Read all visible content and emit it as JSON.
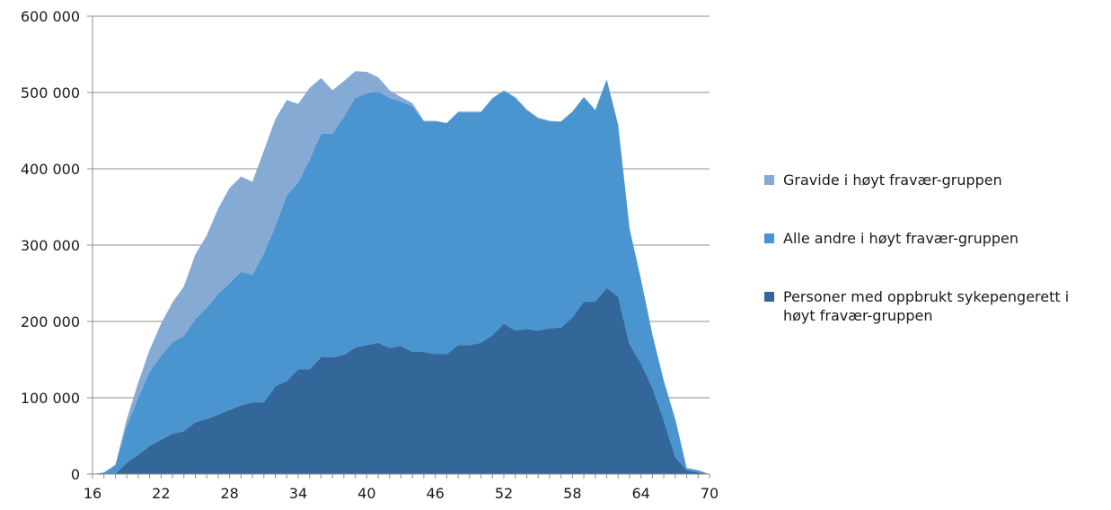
{
  "chart_data": {
    "type": "area",
    "stacked": true,
    "x": [
      16,
      17,
      18,
      19,
      20,
      21,
      22,
      23,
      24,
      25,
      26,
      27,
      28,
      29,
      30,
      31,
      32,
      33,
      34,
      35,
      36,
      37,
      38,
      39,
      40,
      41,
      42,
      43,
      44,
      45,
      46,
      47,
      48,
      49,
      50,
      51,
      52,
      53,
      54,
      55,
      56,
      57,
      58,
      59,
      60,
      61,
      62,
      63,
      64,
      65,
      66,
      67,
      68,
      69,
      70
    ],
    "x_ticks": [
      "16",
      "22",
      "28",
      "34",
      "40",
      "46",
      "52",
      "58",
      "64",
      "70"
    ],
    "y_ticks": [
      "0",
      "100 000",
      "200 000",
      "300 000",
      "400 000",
      "500 000",
      "600 000"
    ],
    "ylim": [
      0,
      600000
    ],
    "xlim": [
      16,
      70
    ],
    "grid": "horizontal",
    "legend_position": "right",
    "series": [
      {
        "name": "Personer med oppbrukt sykepengerett i høyt fravær-gruppen",
        "color": "#336699",
        "values": [
          0,
          0,
          0,
          15000,
          25000,
          37000,
          45000,
          53000,
          56000,
          68000,
          72000,
          78000,
          84000,
          90000,
          94000,
          94000,
          115000,
          122000,
          137000,
          137000,
          153000,
          153000,
          156000,
          166000,
          169000,
          172000,
          165000,
          168000,
          160000,
          160000,
          157000,
          157000,
          169000,
          169000,
          172000,
          182000,
          197000,
          188000,
          190000,
          188000,
          191000,
          192000,
          205000,
          226000,
          226000,
          244000,
          232000,
          170000,
          145000,
          113000,
          70000,
          22000,
          5000,
          2000,
          0
        ]
      },
      {
        "name": "Alle andre i høyt fravær-gruppen",
        "color": "#4a94d0",
        "values": [
          0,
          2000,
          12000,
          48000,
          75000,
          97000,
          110000,
          120000,
          125000,
          135000,
          146000,
          158000,
          166000,
          175000,
          167000,
          195000,
          210000,
          243000,
          245000,
          275000,
          293000,
          293000,
          312000,
          327000,
          330000,
          329000,
          328000,
          320000,
          322000,
          302000,
          305000,
          303000,
          305000,
          305000,
          302000,
          310000,
          305000,
          305000,
          287000,
          278000,
          271000,
          270000,
          270000,
          268000,
          251000,
          273000,
          226000,
          152000,
          110000,
          70000,
          52000,
          50000,
          3000,
          3000,
          0
        ]
      },
      {
        "name": "Gravide i høyt fravær-gruppen",
        "color": "#85abd4",
        "values": [
          0,
          0,
          0,
          9000,
          20000,
          29000,
          42000,
          52000,
          65000,
          85000,
          95000,
          112000,
          125000,
          125000,
          122000,
          135000,
          140000,
          125000,
          103000,
          94000,
          73000,
          57000,
          47000,
          35000,
          28000,
          19000,
          10000,
          6000,
          4000,
          1000,
          1000,
          0,
          1000,
          1000,
          1000,
          1000,
          1000,
          1000,
          1000,
          1000,
          1000,
          0,
          0,
          0,
          0,
          0,
          0,
          0,
          0,
          0,
          0,
          0,
          0,
          0,
          0
        ]
      }
    ]
  }
}
